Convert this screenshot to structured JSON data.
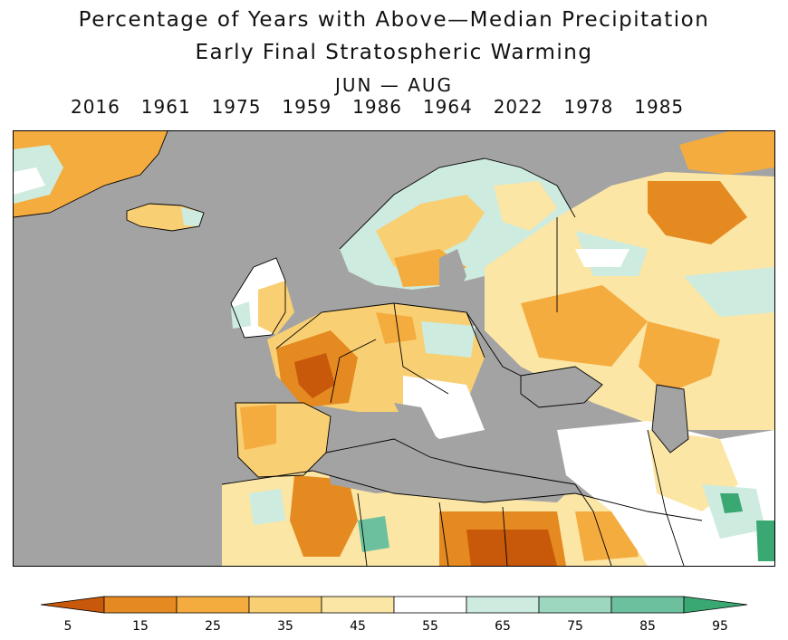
{
  "title": {
    "line1": "Percentage of Years with Above—Median Precipitation",
    "line2": "Early Final Stratospheric Warming",
    "line3": "JUN — AUG"
  },
  "years": [
    "2016",
    "1961",
    "1975",
    "1959",
    "1986",
    "1964",
    "2022",
    "1978",
    "1985"
  ],
  "colors": {
    "ocean_mask": "#a3a3a3",
    "border": "#000000"
  },
  "colorbar": {
    "ticks": [
      "5",
      "15",
      "25",
      "35",
      "45",
      "55",
      "65",
      "75",
      "85",
      "95"
    ],
    "bins": [
      {
        "color": "#c8580a"
      },
      {
        "color": "#e58a20"
      },
      {
        "color": "#f5ac3e"
      },
      {
        "color": "#f9cf73"
      },
      {
        "color": "#fbe6a6"
      },
      {
        "color": "#ffffff"
      },
      {
        "color": "#cdebdf"
      },
      {
        "color": "#9dd7c0"
      },
      {
        "color": "#6cc09e"
      },
      {
        "color": "#3aa872"
      }
    ]
  }
}
